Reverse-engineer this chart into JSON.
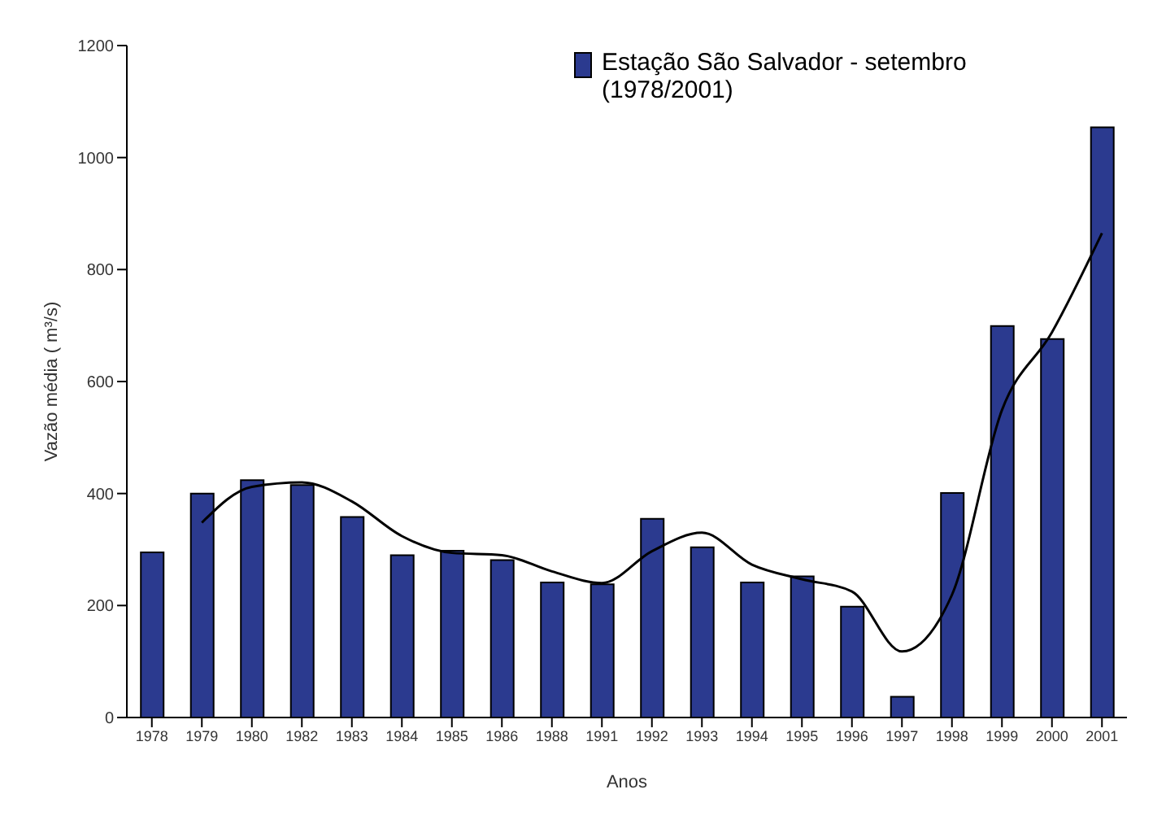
{
  "chart_data": {
    "type": "bar",
    "xlabel": "Anos",
    "ylabel": "Vazão média ( m³/s)",
    "categories": [
      "1978",
      "1979",
      "1980",
      "1982",
      "1983",
      "1984",
      "1985",
      "1986",
      "1988",
      "1991",
      "1992",
      "1993",
      "1994",
      "1995",
      "1996",
      "1997",
      "1998",
      "1999",
      "2000",
      "2001"
    ],
    "series": [
      {
        "name": "Estação São Salvador - setembro (1978/2001)",
        "color": "#2b3a8f",
        "values": [
          295,
          400,
          424,
          415,
          358,
          290,
          298,
          281,
          241,
          238,
          355,
          304,
          241,
          252,
          198,
          37,
          401,
          699,
          676,
          1054
        ]
      },
      {
        "type": "line",
        "color": "#000000",
        "values": [
          null,
          348,
          412,
          420,
          386,
          324,
          294,
          290,
          261,
          240,
          297,
          330,
          273,
          247,
          225,
          118,
          219,
          549,
          688,
          865
        ]
      }
    ],
    "ylim": [
      0,
      1200
    ],
    "yticks": [
      0,
      200,
      400,
      600,
      800,
      1000,
      1200
    ],
    "grid": false,
    "legend": "top right",
    "marker": "none",
    "line_style": "solid"
  }
}
